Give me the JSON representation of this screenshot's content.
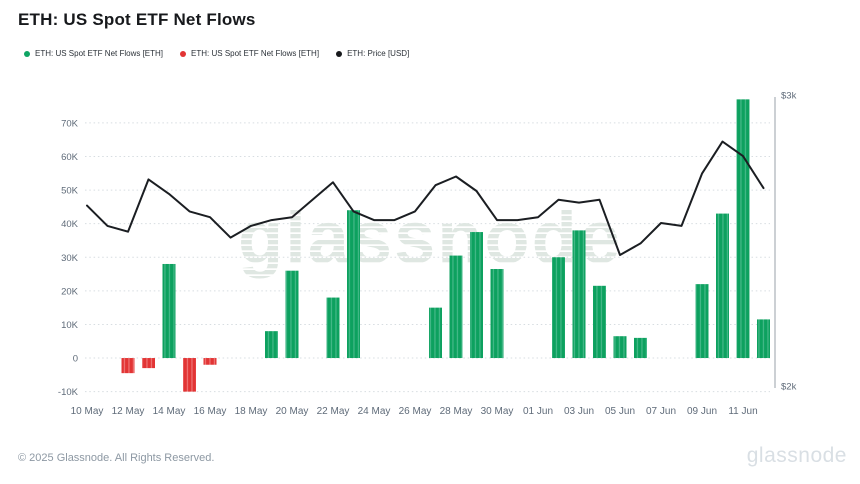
{
  "header": {
    "title": "ETH: US Spot ETF Net Flows"
  },
  "legend": [
    {
      "id": "legend-flows-positive",
      "label": "ETH: US Spot ETF Net Flows [ETH]",
      "color": "#0fa564"
    },
    {
      "id": "legend-flows-negative",
      "label": "ETH: US Spot ETF Net Flows [ETH]",
      "color": "#e23434"
    },
    {
      "id": "legend-price",
      "label": "ETH: Price [USD]",
      "color": "#17191c"
    }
  ],
  "watermark": "glassnode",
  "footer": {
    "copyright": "© 2025 Glassnode. All Rights Reserved.",
    "brand": "glassnode"
  },
  "chart_data": {
    "type": "bar+line",
    "title": "ETH: US Spot ETF Net Flows",
    "x": [
      "10 May",
      "11 May",
      "12 May",
      "13 May",
      "14 May",
      "15 May",
      "16 May",
      "17 May",
      "18 May",
      "19 May",
      "20 May",
      "21 May",
      "22 May",
      "23 May",
      "24 May",
      "25 May",
      "26 May",
      "27 May",
      "28 May",
      "29 May",
      "30 May",
      "31 May",
      "01 Jun",
      "02 Jun",
      "03 Jun",
      "04 Jun",
      "05 Jun",
      "06 Jun",
      "07 Jun",
      "08 Jun",
      "09 Jun",
      "10 Jun",
      "11 Jun",
      "12 Jun"
    ],
    "series": [
      {
        "name": "ETH: US Spot ETF Net Flows [ETH]",
        "type": "bar",
        "unit": "ETH",
        "positive_color": "#0fa564",
        "negative_color": "#e23434",
        "values": [
          null,
          null,
          -4500,
          -3000,
          28000,
          -10000,
          -2000,
          null,
          null,
          8000,
          26000,
          null,
          18000,
          44000,
          null,
          null,
          null,
          15000,
          30500,
          37500,
          26500,
          null,
          null,
          30000,
          38000,
          21500,
          6500,
          6000,
          null,
          null,
          22000,
          43000,
          77000,
          11500
        ]
      },
      {
        "name": "ETH: Price [USD]",
        "type": "line",
        "unit": "USD",
        "color": "#1b1e22",
        "values": [
          2620,
          2550,
          2530,
          2710,
          2660,
          2600,
          2580,
          2510,
          2550,
          2570,
          2580,
          2640,
          2700,
          2600,
          2570,
          2570,
          2600,
          2690,
          2720,
          2670,
          2570,
          2570,
          2580,
          2640,
          2630,
          2640,
          2450,
          2490,
          2560,
          2550,
          2730,
          2840,
          2790,
          2680
        ]
      }
    ],
    "left_axis": {
      "tick_labels": [
        "70K",
        "60K",
        "50K",
        "40K",
        "30K",
        "20K",
        "10K",
        "0",
        "-10K"
      ],
      "tick_values": [
        70000,
        60000,
        50000,
        40000,
        30000,
        20000,
        10000,
        0,
        -10000
      ],
      "range": [
        -11600,
        78300
      ]
    },
    "right_axis": {
      "ticks": [
        {
          "label": "$3k",
          "value": 3000
        },
        {
          "label": "$2k",
          "value": 2000
        }
      ],
      "range_usd": [
        1962,
        3000
      ]
    },
    "x_tick_labels": [
      "10 May",
      "12 May",
      "14 May",
      "16 May",
      "18 May",
      "20 May",
      "22 May",
      "24 May",
      "26 May",
      "28 May",
      "30 May",
      "01 Jun",
      "03 Jun",
      "05 Jun",
      "07 Jun",
      "09 Jun",
      "11 Jun"
    ],
    "grid": "dotted horizontal",
    "legend_position": "top-left"
  }
}
